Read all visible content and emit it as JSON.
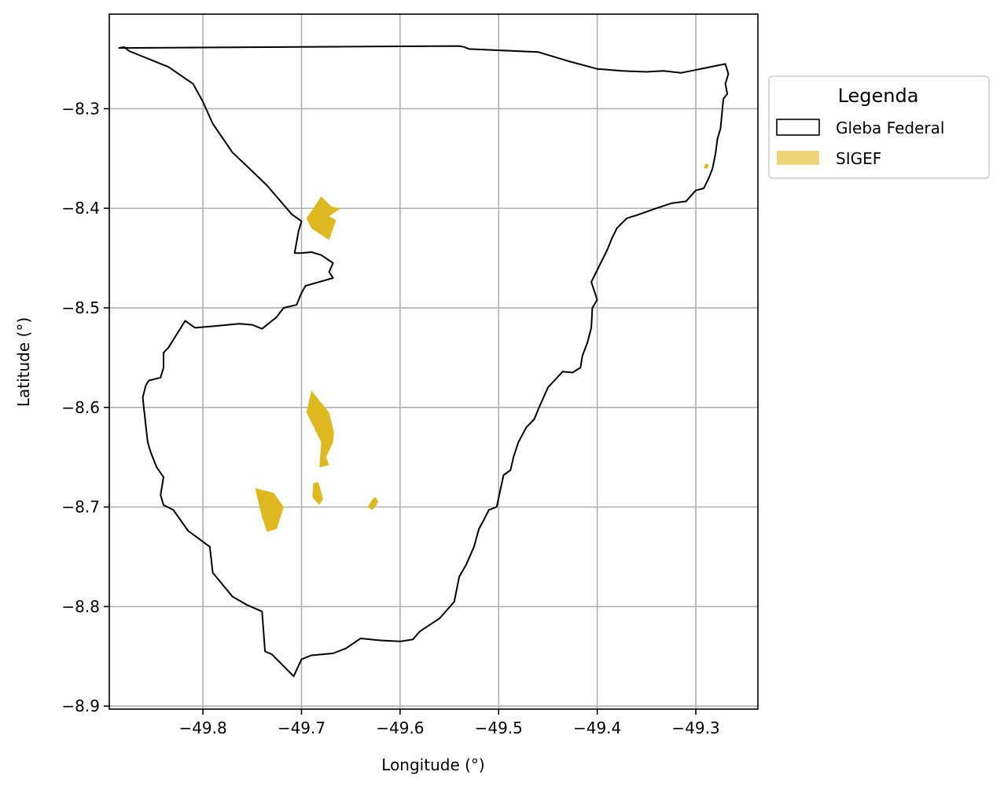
{
  "chart_data": {
    "type": "map",
    "xlabel": "Longitude (°)",
    "ylabel": "Latitude (°)",
    "xlim": [
      -49.895,
      -49.237
    ],
    "ylim": [
      -8.903,
      -8.205
    ],
    "xticks": [
      -49.8,
      -49.7,
      -49.6,
      -49.5,
      -49.4,
      -49.3
    ],
    "xtick_labels": [
      "−49.8",
      "−49.7",
      "−49.6",
      "−49.5",
      "−49.4",
      "−49.3"
    ],
    "yticks": [
      -8.3,
      -8.4,
      -8.5,
      -8.6,
      -8.7,
      -8.8,
      -8.9
    ],
    "ytick_labels": [
      "−8.3",
      "−8.4",
      "−8.5",
      "−8.6",
      "−8.7",
      "−8.8",
      "−8.9"
    ],
    "grid": true,
    "legend": {
      "title": "Legenda",
      "position": "outside-right-top",
      "entries": [
        {
          "label": "Gleba Federal",
          "style": "outline",
          "color": "#000000"
        },
        {
          "label": "SIGEF",
          "style": "fill",
          "color": "#DDB91F"
        }
      ]
    },
    "layers": [
      {
        "name": "Gleba Federal",
        "style": "outline",
        "color": "#000000",
        "polygons": [
          [
            [
              -49.54,
              -8.237
            ],
            [
              -49.535,
              -8.238
            ],
            [
              -49.53,
              -8.24
            ],
            [
              -49.46,
              -8.243
            ],
            [
              -49.43,
              -8.252
            ],
            [
              -49.4,
              -8.26
            ],
            [
              -49.375,
              -8.262
            ],
            [
              -49.35,
              -8.263
            ],
            [
              -49.333,
              -8.262
            ],
            [
              -49.315,
              -8.264
            ],
            [
              -49.27,
              -8.255
            ],
            [
              -49.267,
              -8.265
            ],
            [
              -49.27,
              -8.275
            ],
            [
              -49.268,
              -8.285
            ],
            [
              -49.272,
              -8.29
            ],
            [
              -49.275,
              -8.32
            ],
            [
              -49.278,
              -8.33
            ],
            [
              -49.28,
              -8.345
            ],
            [
              -49.283,
              -8.36
            ],
            [
              -49.287,
              -8.37
            ],
            [
              -49.292,
              -8.38
            ],
            [
              -49.3,
              -8.382
            ],
            [
              -49.31,
              -8.393
            ],
            [
              -49.325,
              -8.395
            ],
            [
              -49.34,
              -8.4
            ],
            [
              -49.36,
              -8.407
            ],
            [
              -49.37,
              -8.41
            ],
            [
              -49.38,
              -8.42
            ],
            [
              -49.385,
              -8.43
            ],
            [
              -49.39,
              -8.442
            ],
            [
              -49.395,
              -8.452
            ],
            [
              -49.4,
              -8.462
            ],
            [
              -49.406,
              -8.474
            ],
            [
              -49.4,
              -8.492
            ],
            [
              -49.405,
              -8.5
            ],
            [
              -49.406,
              -8.52
            ],
            [
              -49.41,
              -8.535
            ],
            [
              -49.415,
              -8.548
            ],
            [
              -49.417,
              -8.56
            ],
            [
              -49.425,
              -8.565
            ],
            [
              -49.435,
              -8.564
            ],
            [
              -49.45,
              -8.58
            ],
            [
              -49.459,
              -8.6
            ],
            [
              -49.464,
              -8.612
            ],
            [
              -49.472,
              -8.62
            ],
            [
              -49.48,
              -8.635
            ],
            [
              -49.485,
              -8.65
            ],
            [
              -49.488,
              -8.663
            ],
            [
              -49.495,
              -8.668
            ],
            [
              -49.502,
              -8.7
            ],
            [
              -49.51,
              -8.703
            ],
            [
              -49.515,
              -8.713
            ],
            [
              -49.52,
              -8.722
            ],
            [
              -49.525,
              -8.74
            ],
            [
              -49.533,
              -8.758
            ],
            [
              -49.54,
              -8.77
            ],
            [
              -49.545,
              -8.795
            ],
            [
              -49.56,
              -8.812
            ],
            [
              -49.58,
              -8.825
            ],
            [
              -49.587,
              -8.833
            ],
            [
              -49.6,
              -8.835
            ],
            [
              -49.62,
              -8.834
            ],
            [
              -49.64,
              -8.832
            ],
            [
              -49.655,
              -8.842
            ],
            [
              -49.668,
              -8.847
            ],
            [
              -49.69,
              -8.849
            ],
            [
              -49.7,
              -8.853
            ],
            [
              -49.708,
              -8.87
            ],
            [
              -49.72,
              -8.858
            ],
            [
              -49.73,
              -8.848
            ],
            [
              -49.737,
              -8.845
            ],
            [
              -49.74,
              -8.805
            ],
            [
              -49.756,
              -8.798
            ],
            [
              -49.77,
              -8.79
            ],
            [
              -49.79,
              -8.766
            ],
            [
              -49.793,
              -8.74
            ],
            [
              -49.815,
              -8.724
            ],
            [
              -49.83,
              -8.703
            ],
            [
              -49.84,
              -8.698
            ],
            [
              -49.843,
              -8.688
            ],
            [
              -49.84,
              -8.67
            ],
            [
              -49.847,
              -8.66
            ],
            [
              -49.853,
              -8.645
            ],
            [
              -49.856,
              -8.635
            ],
            [
              -49.858,
              -8.618
            ],
            [
              -49.86,
              -8.6
            ],
            [
              -49.861,
              -8.59
            ],
            [
              -49.858,
              -8.578
            ],
            [
              -49.855,
              -8.573
            ],
            [
              -49.843,
              -8.57
            ],
            [
              -49.84,
              -8.56
            ],
            [
              -49.84,
              -8.545
            ],
            [
              -49.835,
              -8.54
            ],
            [
              -49.818,
              -8.513
            ],
            [
              -49.808,
              -8.52
            ],
            [
              -49.785,
              -8.518
            ],
            [
              -49.763,
              -8.516
            ],
            [
              -49.75,
              -8.517
            ],
            [
              -49.74,
              -8.521
            ],
            [
              -49.73,
              -8.513
            ],
            [
              -49.726,
              -8.51
            ],
            [
              -49.718,
              -8.5
            ],
            [
              -49.705,
              -8.497
            ],
            [
              -49.7,
              -8.485
            ],
            [
              -49.696,
              -8.478
            ],
            [
              -49.668,
              -8.47
            ],
            [
              -49.672,
              -8.464
            ],
            [
              -49.668,
              -8.455
            ],
            [
              -49.68,
              -8.447
            ],
            [
              -49.69,
              -8.444
            ],
            [
              -49.7,
              -8.445
            ],
            [
              -49.707,
              -8.445
            ],
            [
              -49.703,
              -8.423
            ],
            [
              -49.7,
              -8.413
            ],
            [
              -49.71,
              -8.406
            ],
            [
              -49.735,
              -8.377
            ],
            [
              -49.755,
              -8.358
            ],
            [
              -49.77,
              -8.344
            ],
            [
              -49.79,
              -8.315
            ],
            [
              -49.8,
              -8.293
            ],
            [
              -49.81,
              -8.275
            ],
            [
              -49.835,
              -8.258
            ],
            [
              -49.855,
              -8.25
            ],
            [
              -49.865,
              -8.246
            ],
            [
              -49.875,
              -8.242
            ],
            [
              -49.88,
              -8.238
            ],
            [
              -49.885,
              -8.239
            ],
            [
              -49.54,
              -8.237
            ]
          ]
        ]
      },
      {
        "name": "SIGEF",
        "style": "fill",
        "color": "#DDB91F",
        "polygons": [
          [
            [
              -49.68,
              -8.388
            ],
            [
              -49.67,
              -8.398
            ],
            [
              -49.66,
              -8.4
            ],
            [
              -49.672,
              -8.408
            ],
            [
              -49.665,
              -8.412
            ],
            [
              -49.672,
              -8.432
            ],
            [
              -49.69,
              -8.42
            ],
            [
              -49.695,
              -8.41
            ],
            [
              -49.688,
              -8.4
            ]
          ],
          [
            [
              -49.69,
              -8.583
            ],
            [
              -49.672,
              -8.605
            ],
            [
              -49.667,
              -8.625
            ],
            [
              -49.668,
              -8.635
            ],
            [
              -49.675,
              -8.65
            ],
            [
              -49.672,
              -8.658
            ],
            [
              -49.682,
              -8.66
            ],
            [
              -49.68,
              -8.635
            ],
            [
              -49.69,
              -8.615
            ],
            [
              -49.695,
              -8.605
            ]
          ],
          [
            [
              -49.683,
              -8.675
            ],
            [
              -49.678,
              -8.692
            ],
            [
              -49.682,
              -8.698
            ],
            [
              -49.689,
              -8.69
            ],
            [
              -49.688,
              -8.676
            ]
          ],
          [
            [
              -49.747,
              -8.681
            ],
            [
              -49.728,
              -8.686
            ],
            [
              -49.718,
              -8.7
            ],
            [
              -49.725,
              -8.722
            ],
            [
              -49.735,
              -8.725
            ],
            [
              -49.74,
              -8.71
            ],
            [
              -49.745,
              -8.69
            ]
          ],
          [
            [
              -49.625,
              -8.69
            ],
            [
              -49.628,
              -8.692
            ],
            [
              -49.633,
              -8.7
            ],
            [
              -49.628,
              -8.703
            ],
            [
              -49.622,
              -8.695
            ]
          ],
          [
            [
              -49.29,
              -8.355
            ],
            [
              -49.287,
              -8.356
            ],
            [
              -49.288,
              -8.36
            ],
            [
              -49.292,
              -8.36
            ]
          ]
        ]
      }
    ]
  }
}
